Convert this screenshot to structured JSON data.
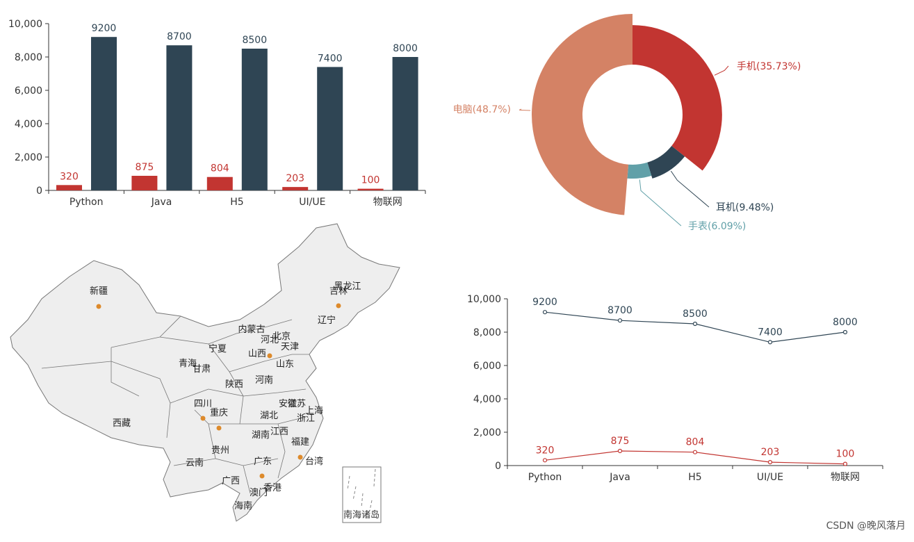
{
  "colors": {
    "red": "#c23531",
    "navy": "#2f4554",
    "salmon": "#d48265",
    "teal": "#61a0a8",
    "axis": "#333333",
    "map_fill": "#eeeeee",
    "map_stroke": "#777777",
    "map_point": "#dd8a2b"
  },
  "chart_data": [
    {
      "type": "bar",
      "categories": [
        "Python",
        "Java",
        "H5",
        "UI/UE",
        "物联网"
      ],
      "series": [
        {
          "values": [
            320,
            875,
            804,
            203,
            100
          ],
          "color": "#c23531"
        },
        {
          "values": [
            9200,
            8700,
            8500,
            7400,
            8000
          ],
          "color": "#2f4554"
        }
      ],
      "yticks": [
        "0",
        "2,000",
        "4,000",
        "6,000",
        "8,000",
        "10,000"
      ],
      "ylim": [
        0,
        10000
      ],
      "grid": false
    },
    {
      "type": "pie",
      "subtype": "donut",
      "slices": [
        {
          "label": "手机(35.73%)",
          "value": 35.73,
          "color": "#c23531"
        },
        {
          "label": "耳机(9.48%)",
          "value": 9.48,
          "color": "#2f4554"
        },
        {
          "label": "手表(6.09%)",
          "value": 6.09,
          "color": "#61a0a8"
        },
        {
          "label": "电脑(48.7%)",
          "value": 48.7,
          "color": "#d48265"
        }
      ],
      "rose_type": "radius"
    },
    {
      "type": "line",
      "categories": [
        "Python",
        "Java",
        "H5",
        "UI/UE",
        "物联网"
      ],
      "series": [
        {
          "values": [
            9200,
            8700,
            8500,
            7400,
            8000
          ],
          "color": "#2f4554"
        },
        {
          "values": [
            320,
            875,
            804,
            203,
            100
          ],
          "color": "#c23531"
        }
      ],
      "yticks": [
        "0",
        "2,000",
        "4,000",
        "6,000",
        "8,000",
        "10,000"
      ],
      "ylim": [
        0,
        10000
      ],
      "grid": false
    }
  ],
  "map": {
    "provinces": [
      "新疆",
      "西藏",
      "青海",
      "甘肃",
      "宁夏",
      "内蒙古",
      "黑龙江",
      "吉林",
      "辽宁",
      "河北",
      "北京",
      "天津",
      "山西",
      "山东",
      "陕西",
      "河南",
      "四川",
      "重庆",
      "湖北",
      "安徽",
      "江苏",
      "上海",
      "浙江",
      "湖南",
      "江西",
      "福建",
      "贵州",
      "云南",
      "广东",
      "广西",
      "台湾",
      "香港",
      "澳门",
      "海南"
    ],
    "inset_label": "南海诸岛",
    "highlighted": [
      "新疆",
      "吉林",
      "山西",
      "四川",
      "重庆",
      "福建",
      "广东"
    ]
  },
  "watermark": "CSDN @晚风落月"
}
